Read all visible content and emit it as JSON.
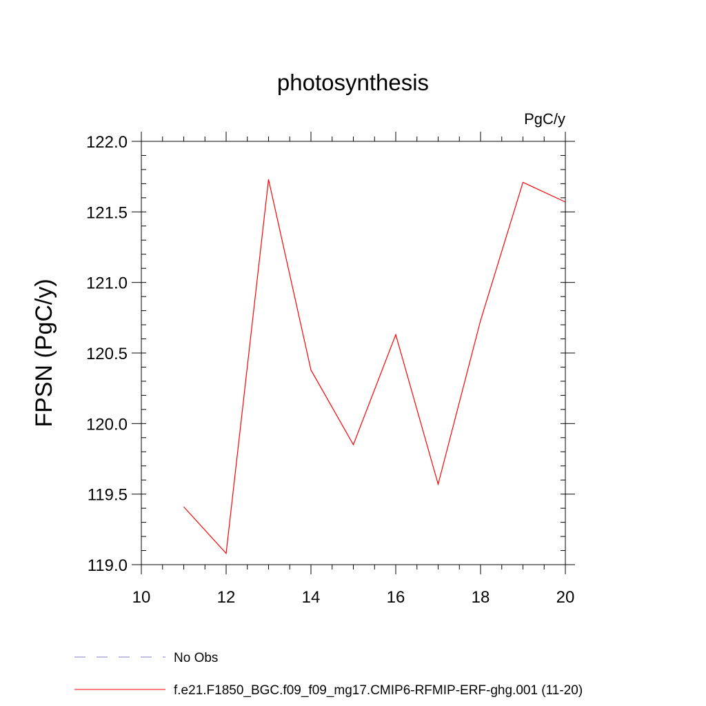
{
  "chart_data": {
    "type": "line",
    "title": "photosynthesis",
    "units_label": "PgC/y",
    "ylabel": "FPSN  (PgC/y)",
    "xlabel": "",
    "xlim": [
      10,
      20
    ],
    "ylim": [
      119.0,
      122.0
    ],
    "x_ticks": [
      10,
      12,
      14,
      16,
      18,
      20
    ],
    "x_tick_labels": [
      "10",
      "12",
      "14",
      "16",
      "18",
      "20"
    ],
    "y_ticks": [
      119.0,
      119.5,
      120.0,
      120.5,
      121.0,
      121.5,
      122.0
    ],
    "y_tick_labels": [
      "119.0",
      "119.5",
      "120.0",
      "120.5",
      "121.0",
      "121.5",
      "122.0"
    ],
    "grid": false,
    "legend_placement": "bottom",
    "legend": [
      {
        "label": "No Obs",
        "style": "dashed",
        "color": "#7f7fbf"
      },
      {
        "label": "f.e21.F1850_BGC.f09_f09_mg17.CMIP6-RFMIP-ERF-ghg.001 (11-20)",
        "style": "solid",
        "color": "#ff0000"
      }
    ],
    "series": [
      {
        "color": "#ff0000",
        "x": [
          11,
          12,
          13,
          14,
          15,
          16,
          17,
          18,
          19,
          20
        ],
        "values": [
          119.41,
          119.08,
          121.73,
          120.38,
          119.85,
          120.63,
          119.57,
          120.73,
          121.71,
          121.57
        ]
      }
    ]
  }
}
